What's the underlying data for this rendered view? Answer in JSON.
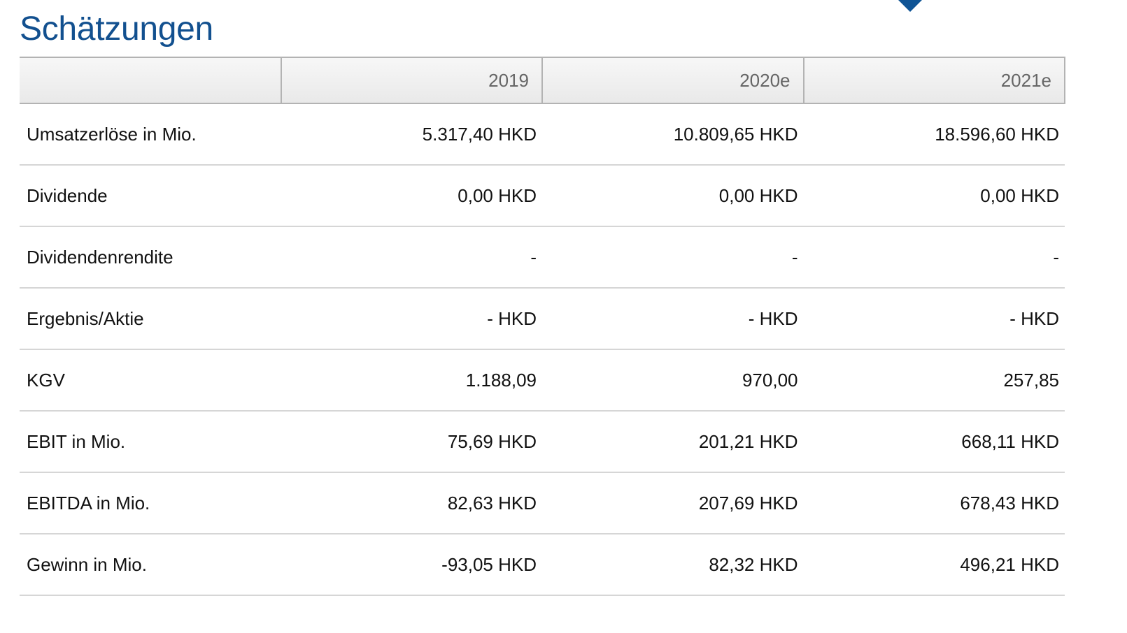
{
  "accent_color": "#12508f",
  "header": {
    "title": "Schätzungen",
    "marker_icon": "chevron-down-icon"
  },
  "table": {
    "columns": [
      "",
      "2019",
      "2020e",
      "2021e"
    ],
    "rows": [
      {
        "label": "Umsatzerlöse in Mio.",
        "values": [
          "5.317,40 HKD",
          "10.809,65 HKD",
          "18.596,60 HKD"
        ]
      },
      {
        "label": "Dividende",
        "values": [
          "0,00 HKD",
          "0,00 HKD",
          "0,00 HKD"
        ]
      },
      {
        "label": "Dividendenrendite",
        "values": [
          "-",
          "-",
          "-"
        ]
      },
      {
        "label": "Ergebnis/Aktie",
        "values": [
          "- HKD",
          "- HKD",
          "- HKD"
        ]
      },
      {
        "label": "KGV",
        "values": [
          "1.188,09",
          "970,00",
          "257,85"
        ]
      },
      {
        "label": "EBIT in Mio.",
        "values": [
          "75,69 HKD",
          "201,21 HKD",
          "668,11 HKD"
        ]
      },
      {
        "label": "EBITDA in Mio.",
        "values": [
          "82,63 HKD",
          "207,69 HKD",
          "678,43 HKD"
        ]
      },
      {
        "label": "Gewinn in Mio.",
        "values": [
          "-93,05 HKD",
          "82,32 HKD",
          "496,21 HKD"
        ]
      }
    ]
  }
}
